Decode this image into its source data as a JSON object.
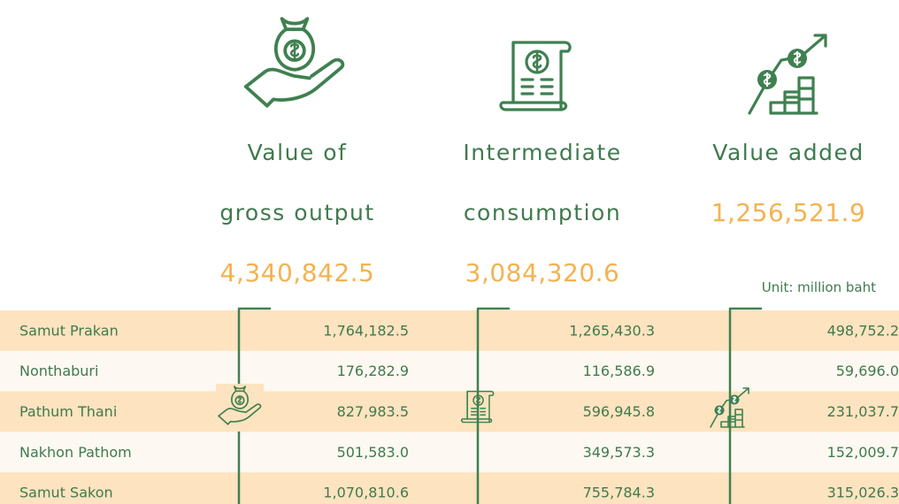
{
  "columns": [
    {
      "heading_lines": [
        "Value of",
        "gross output"
      ],
      "total": "4,340,842.5"
    },
    {
      "heading_lines": [
        "Intermediate",
        "consumption"
      ],
      "total": "3,084,320.6"
    },
    {
      "heading_lines": [
        "Value added"
      ],
      "total": "1,256,521.9"
    }
  ],
  "unit": "Unit: million baht",
  "table": {
    "rows": [
      [
        "Samut Prakan",
        "1,764,182.5",
        "1,265,430.3",
        "498,752.2"
      ],
      [
        "Nonthaburi",
        "176,282.9",
        "116,586.9",
        "59,696.0"
      ],
      [
        "Pathum Thani",
        "827,983.5",
        "596,945.8",
        "231,037.7"
      ],
      [
        "Nakhon Pathom",
        "501,583.0",
        "349,573.3",
        "152,009.7"
      ],
      [
        "Samut Sakon",
        "1,070,810.6",
        "755,784.3",
        "315,026.3"
      ]
    ]
  }
}
